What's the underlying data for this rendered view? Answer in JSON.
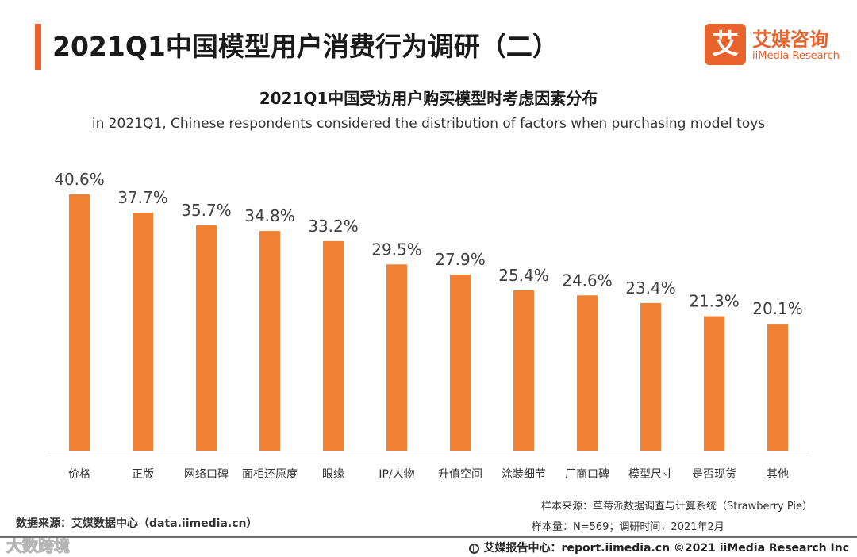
{
  "header": {
    "title": "2021Q1中国模型用户消费行为调研（二）",
    "logo": {
      "mark": "艾",
      "name_cn": "艾媒咨询",
      "name_en": "iiMedia Research"
    }
  },
  "colors": {
    "accent": "#e8622b",
    "bar": "#ee8133",
    "baseline": "#d9d9d9"
  },
  "chart_data": {
    "type": "bar",
    "title": "2021Q1中国受访用户购买模型时考虑因素分布",
    "subtitle": "in 2021Q1, Chinese respondents considered the distribution of factors when purchasing model toys",
    "categories": [
      "价格",
      "正版",
      "网络口碑",
      "面相还原度",
      "眼缘",
      "IP/人物",
      "升值空间",
      "涂装细节",
      "厂商口碑",
      "模型尺寸",
      "是否现货",
      "其他"
    ],
    "values": [
      40.6,
      37.7,
      35.7,
      34.8,
      33.2,
      29.5,
      27.9,
      25.4,
      24.6,
      23.4,
      21.3,
      20.1
    ],
    "labels": [
      "40.6%",
      "37.7%",
      "35.7%",
      "34.8%",
      "33.2%",
      "29.5%",
      "27.9%",
      "25.4%",
      "24.6%",
      "23.4%",
      "21.3%",
      "20.1%"
    ],
    "unit": "%",
    "xlabel": "",
    "ylabel": "",
    "ylim": [
      0,
      40.6
    ],
    "grid": false,
    "legend": "none"
  },
  "notes": {
    "sample_source": "样本来源：草莓派数据调查与计算系统（Strawberry Pie）",
    "sample_size": "样本量：N=569；调研时间：2021年2月",
    "data_source": "数据来源：艾媒数据中心（data.iimedia.cn）"
  },
  "footer": {
    "text": "艾媒报告中心：report.iimedia.cn  ©2021  iiMedia Research  Inc",
    "watermark": "大数跨境"
  }
}
